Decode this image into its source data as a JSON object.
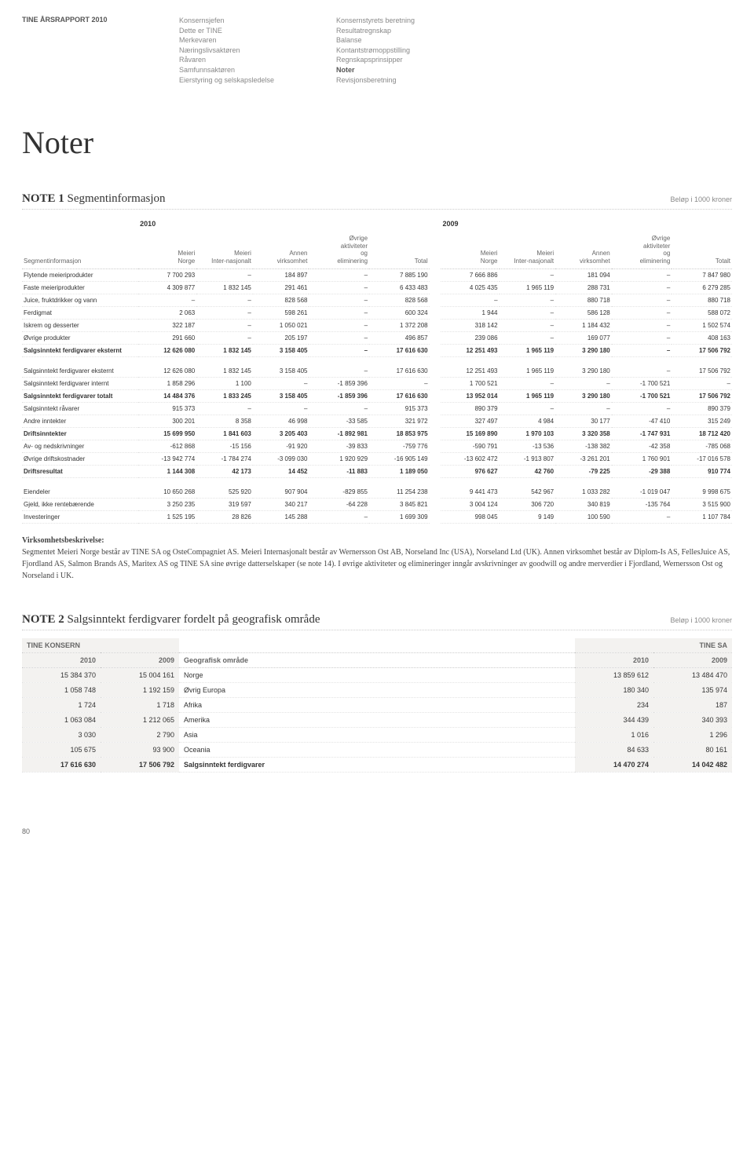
{
  "header": {
    "report": "TINE ÅRSRAPPORT 2010",
    "col1": [
      "Konsernsjefen",
      "Dette er TINE",
      "Merkevaren",
      "Næringslivsaktøren",
      "Råvaren",
      "Samfunnsaktøren",
      "Eierstyring og selskapsledelse"
    ],
    "col2": [
      "Konsernstyrets beretning",
      "Resultatregnskap",
      "Balanse",
      "Kontantstrømoppstilling",
      "Regnskapsprinsipper",
      "Noter",
      "Revisjonsberetning"
    ],
    "col2_highlight_index": 5
  },
  "page_title": "Noter",
  "note1": {
    "label": "NOTE 1",
    "title": "Segmentinformasjon",
    "unit": "Beløp i 1000 kroner",
    "years": [
      "2010",
      "2009"
    ],
    "columns_left": [
      "Segmentinformasjon",
      "Meieri Norge",
      "Meieri Inter-nasjonalt",
      "Annen virksomhet",
      "Øvrige aktiviteter og eliminering",
      "Total"
    ],
    "columns_right": [
      "Meieri Norge",
      "Meieri Inter-nasjonalt",
      "Annen virksomhet",
      "Øvrige aktiviteter og eliminering",
      "Totalt"
    ],
    "rows_a": [
      {
        "label": "Flytende meieriprodukter",
        "v": [
          "7 700 293",
          "–",
          "184 897",
          "–",
          "7 885 190",
          "7 666 886",
          "–",
          "181 094",
          "–",
          "7 847 980"
        ]
      },
      {
        "label": "Faste meieriprodukter",
        "v": [
          "4 309 877",
          "1 832 145",
          "291 461",
          "–",
          "6 433 483",
          "4 025 435",
          "1 965 119",
          "288 731",
          "–",
          "6 279 285"
        ]
      },
      {
        "label": "Juice, fruktdrikker og vann",
        "v": [
          "–",
          "–",
          "828 568",
          "–",
          "828 568",
          "–",
          "–",
          "880 718",
          "–",
          "880 718"
        ]
      },
      {
        "label": "Ferdigmat",
        "v": [
          "2 063",
          "–",
          "598 261",
          "–",
          "600 324",
          "1 944",
          "–",
          "586 128",
          "–",
          "588 072"
        ]
      },
      {
        "label": "Iskrem og desserter",
        "v": [
          "322 187",
          "–",
          "1 050 021",
          "–",
          "1 372 208",
          "318 142",
          "–",
          "1 184 432",
          "–",
          "1 502 574"
        ]
      },
      {
        "label": "Øvrige produkter",
        "v": [
          "291 660",
          "–",
          "205 197",
          "–",
          "496 857",
          "239 086",
          "–",
          "169 077",
          "–",
          "408 163"
        ]
      },
      {
        "label": "Salgsinntekt ferdigvarer eksternt",
        "v": [
          "12 626 080",
          "1 832 145",
          "3 158 405",
          "–",
          "17 616 630",
          "12 251 493",
          "1 965 119",
          "3 290 180",
          "–",
          "17 506 792"
        ],
        "bold": true
      }
    ],
    "rows_b": [
      {
        "label": "Salgsinntekt ferdigvarer eksternt",
        "v": [
          "12 626 080",
          "1 832 145",
          "3 158 405",
          "–",
          "17 616 630",
          "12 251 493",
          "1 965 119",
          "3 290 180",
          "–",
          "17 506 792"
        ]
      },
      {
        "label": "Salgsinntekt ferdigvarer internt",
        "v": [
          "1 858 296",
          "1 100",
          "–",
          "-1 859 396",
          "–",
          "1 700 521",
          "–",
          "–",
          "-1 700 521",
          "–"
        ]
      },
      {
        "label": "Salgsinntekt ferdigvarer totalt",
        "v": [
          "14 484 376",
          "1 833 245",
          "3 158 405",
          "-1 859 396",
          "17 616 630",
          "13 952 014",
          "1 965 119",
          "3 290 180",
          "-1 700 521",
          "17 506 792"
        ],
        "bold": true
      },
      {
        "label": "Salgsinntekt råvarer",
        "v": [
          "915 373",
          "–",
          "–",
          "–",
          "915 373",
          "890 379",
          "–",
          "–",
          "–",
          "890 379"
        ]
      },
      {
        "label": "Andre inntekter",
        "v": [
          "300 201",
          "8 358",
          "46 998",
          "-33 585",
          "321 972",
          "327 497",
          "4 984",
          "30 177",
          "-47 410",
          "315 249"
        ]
      },
      {
        "label": "Driftsinntekter",
        "v": [
          "15 699 950",
          "1 841 603",
          "3 205 403",
          "-1 892 981",
          "18 853 975",
          "15 169 890",
          "1 970 103",
          "3 320 358",
          "-1 747 931",
          "18 712 420"
        ],
        "bold": true
      },
      {
        "label": "Av- og nedskrivninger",
        "v": [
          "-612 868",
          "-15 156",
          "-91 920",
          "-39 833",
          "-759 776",
          "-590 791",
          "-13 536",
          "-138 382",
          "-42 358",
          "-785 068"
        ]
      },
      {
        "label": "Øvrige driftskostnader",
        "v": [
          "-13 942 774",
          "-1 784 274",
          "-3 099 030",
          "1 920 929",
          "-16 905 149",
          "-13 602 472",
          "-1 913 807",
          "-3 261 201",
          "1 760 901",
          "-17 016 578"
        ]
      },
      {
        "label": "Driftsresultat",
        "v": [
          "1 144 308",
          "42 173",
          "14 452",
          "-11 883",
          "1 189 050",
          "976 627",
          "42 760",
          "-79 225",
          "-29 388",
          "910 774"
        ],
        "bold": true
      }
    ],
    "rows_c": [
      {
        "label": "Eiendeler",
        "v": [
          "10 650 268",
          "525 920",
          "907 904",
          "-829 855",
          "11 254 238",
          "9 441 473",
          "542 967",
          "1 033 282",
          "-1 019 047",
          "9 998 675"
        ]
      },
      {
        "label": "Gjeld, ikke rentebærende",
        "v": [
          "3 250 235",
          "319 597",
          "340 217",
          "-64 228",
          "3 845 821",
          "3 004 124",
          "306 720",
          "340 819",
          "-135 764",
          "3 515 900"
        ]
      },
      {
        "label": "Investeringer",
        "v": [
          "1 525 195",
          "28 826",
          "145 288",
          "–",
          "1 699 309",
          "998 045",
          "9 149",
          "100 590",
          "–",
          "1 107 784"
        ]
      }
    ],
    "body_heading": "Virksomhetsbeskrivelse:",
    "body_text": "Segmentet Meieri Norge består av TINE SA og OsteCompagniet AS. Meieri Internasjonalt består av Wernersson Ost AB, Norseland Inc (USA), Norseland Ltd (UK). Annen virksomhet består av Diplom-Is AS, FellesJuice AS, Fjordland AS, Salmon Brands AS, Maritex AS og TINE SA sine øvrige datterselskaper (se note 14). I øvrige aktiviteter og elimineringer inngår avskrivninger av goodwill og andre merverdier i Fjordland, Wernersson Ost og Norseland i UK."
  },
  "note2": {
    "label": "NOTE 2",
    "title": "Salgsinntekt ferdigvarer fordelt på geografisk område",
    "unit": "Beløp i 1000 kroner",
    "left_header": "TINE KONSERN",
    "right_header": "TINE SA",
    "col_years_left": [
      "2010",
      "2009"
    ],
    "mid_header": "Geografisk område",
    "col_years_right": [
      "2010",
      "2009"
    ],
    "rows": [
      {
        "l": [
          "15 384 370",
          "15 004 161"
        ],
        "label": "Norge",
        "r": [
          "13 859 612",
          "13 484 470"
        ]
      },
      {
        "l": [
          "1 058 748",
          "1 192 159"
        ],
        "label": "Øvrig Europa",
        "r": [
          "180 340",
          "135 974"
        ]
      },
      {
        "l": [
          "1 724",
          "1 718"
        ],
        "label": "Afrika",
        "r": [
          "234",
          "187"
        ]
      },
      {
        "l": [
          "1 063 084",
          "1 212 065"
        ],
        "label": "Amerika",
        "r": [
          "344 439",
          "340 393"
        ]
      },
      {
        "l": [
          "3 030",
          "2 790"
        ],
        "label": "Asia",
        "r": [
          "1 016",
          "1 296"
        ]
      },
      {
        "l": [
          "105 675",
          "93 900"
        ],
        "label": "Oceania",
        "r": [
          "84 633",
          "80 161"
        ]
      },
      {
        "l": [
          "17 616 630",
          "17 506 792"
        ],
        "label": "Salgsinntekt ferdigvarer",
        "r": [
          "14 470 274",
          "14 042 482"
        ],
        "bold": true
      }
    ]
  },
  "page_number": "80",
  "colors": {
    "light_bg": "#f3f2f0",
    "dotted": "#cccccc"
  }
}
